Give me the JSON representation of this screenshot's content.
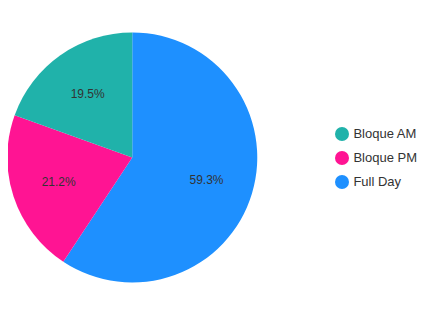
{
  "chart_data": {
    "type": "pie",
    "categories": [
      "Full Day",
      "Bloque PM",
      "Bloque AM"
    ],
    "values": [
      59.3,
      21.2,
      19.5
    ],
    "value_labels": [
      "59.3%",
      "21.2%",
      "19.5%"
    ],
    "colors": [
      "#1E90FF",
      "#FF1493",
      "#20B2AA"
    ],
    "data_labels": true,
    "legend": "right"
  }
}
